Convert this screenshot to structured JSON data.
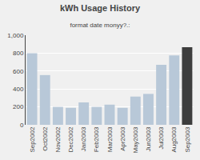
{
  "chart_data": {
    "type": "bar",
    "title": "kWh Usage History",
    "subtitle": "format date monyy?.:",
    "categories": [
      "Sep2002",
      "Oct2002",
      "Nov2002",
      "Dec2002",
      "Jan2003",
      "Feb2003",
      "Mar2003",
      "Apr2003",
      "May2003",
      "Jun2003",
      "Jul2003",
      "Aug2003",
      "Sep2003"
    ],
    "values": [
      800,
      555,
      200,
      190,
      250,
      200,
      225,
      190,
      315,
      345,
      670,
      775,
      865
    ],
    "colors": [
      "#b8c8d8",
      "#b8c8d8",
      "#b8c8d8",
      "#b8c8d8",
      "#b8c8d8",
      "#b8c8d8",
      "#b8c8d8",
      "#b8c8d8",
      "#b8c8d8",
      "#b8c8d8",
      "#b8c8d8",
      "#b8c8d8",
      "#3d3d3d"
    ],
    "ylim": [
      0,
      1000
    ],
    "yticks": [
      0,
      200,
      400,
      600,
      800,
      {
        "value": 1000,
        "label": "1,000"
      }
    ],
    "grid": true
  }
}
